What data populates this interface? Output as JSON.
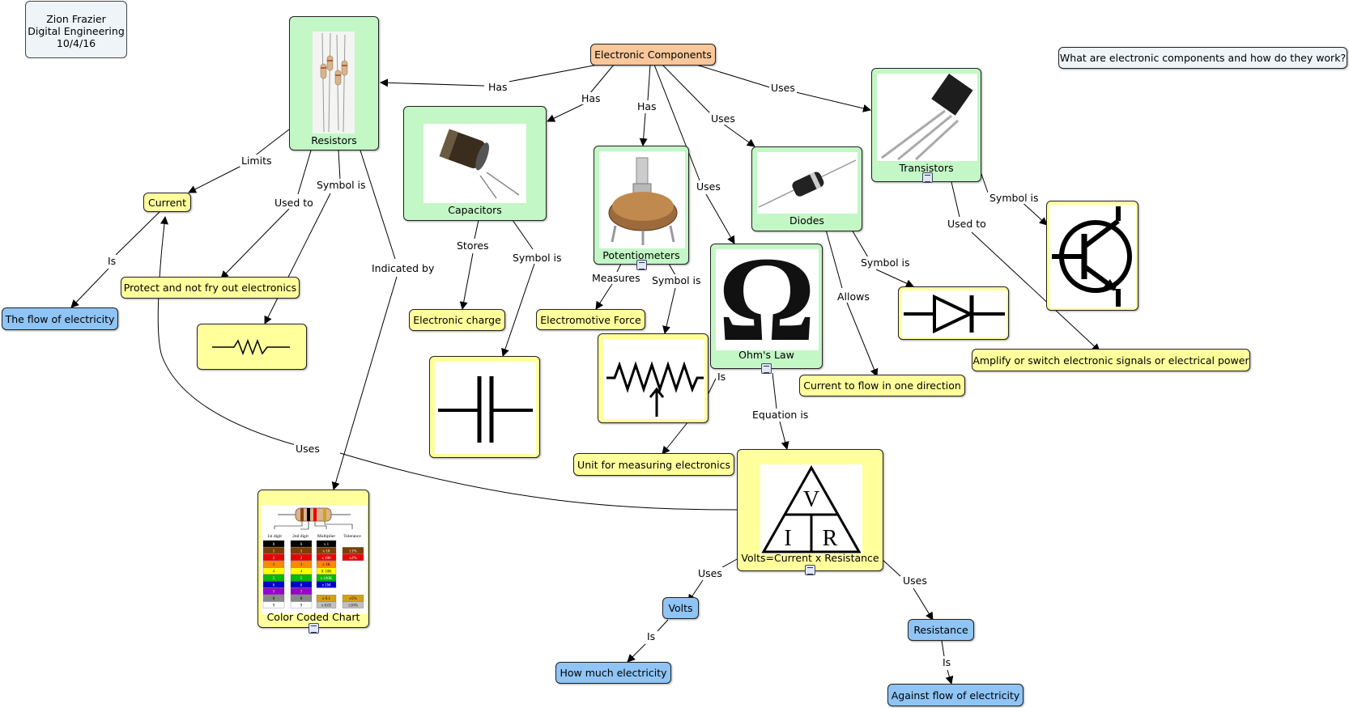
{
  "author": {
    "line1": "Zion Frazier",
    "line2": "Digital Engineering",
    "line3": "10/4/16"
  },
  "question": "What are electronic components and how do they work?",
  "nodes": {
    "electronic_components": "Electronic Components",
    "resistors": "Resistors",
    "capacitors": "Capacitors",
    "potentiometers": "Potentiometers",
    "diodes": "Diodes",
    "transistors": "Transistors",
    "ohms_law": "Ohm's Law",
    "current": "Current",
    "flow_of_electricity": "The flow of electricity",
    "protect": "Protect and not fry out electronics",
    "electronic_charge": "Electronic charge",
    "electromotive_force": "Electromotive Force",
    "current_one_direction": "Current to flow in one direction",
    "amplify": "Amplify or switch electronic signals or electrical power",
    "unit_measuring": "Unit for measuring electronics",
    "volts_equation": "Volts=Current x Resistance",
    "color_coded_chart": "Color Coded Chart",
    "volts": "Volts",
    "how_much": "How much electricity",
    "resistance": "Resistance",
    "against_flow": "Against flow of electricity"
  },
  "links": {
    "has1": "Has",
    "has2": "Has",
    "has3": "Has",
    "uses1": "Uses",
    "uses2": "Uses",
    "uses3": "Uses",
    "limits": "Limits",
    "used_to1": "Used to",
    "symbol_is1": "Symbol is",
    "is1": "Is",
    "indicated_by": "Indicated by",
    "stores": "Stores",
    "symbol_is2": "Symbol is",
    "measures": "Measures",
    "symbol_is3": "Symbol is",
    "allows": "Allows",
    "symbol_is4": "Symbol is",
    "symbol_is5": "Symbol is",
    "used_to2": "Used to",
    "is2": "Is",
    "equation_is": "Equation is",
    "uses4": "Uses",
    "uses5": "Uses",
    "uses6": "Uses",
    "is3": "Is",
    "is4": "Is"
  },
  "triangle": {
    "top": "V",
    "left": "I",
    "right": "R"
  },
  "chart_table": {
    "headers": [
      "1st digit",
      "2nd digit",
      "Multiplier",
      "Tolerance"
    ],
    "multipliers": [
      "x 1",
      "x 10",
      "x 100",
      "x 1K",
      "X 10K",
      "x 100K",
      "x 1M"
    ],
    "tolerances": [
      "±1%",
      "±2%"
    ],
    "extra_multipliers": [
      "x 0.1",
      "x 0.01"
    ],
    "extra_tolerances": [
      "±5%",
      "±10%"
    ]
  },
  "colors": {
    "concept_yellow": "#ffff9c",
    "concept_blue": "#8fc4f5",
    "image_green": "#c3f7c6",
    "root_orange": "#f9c79a"
  }
}
